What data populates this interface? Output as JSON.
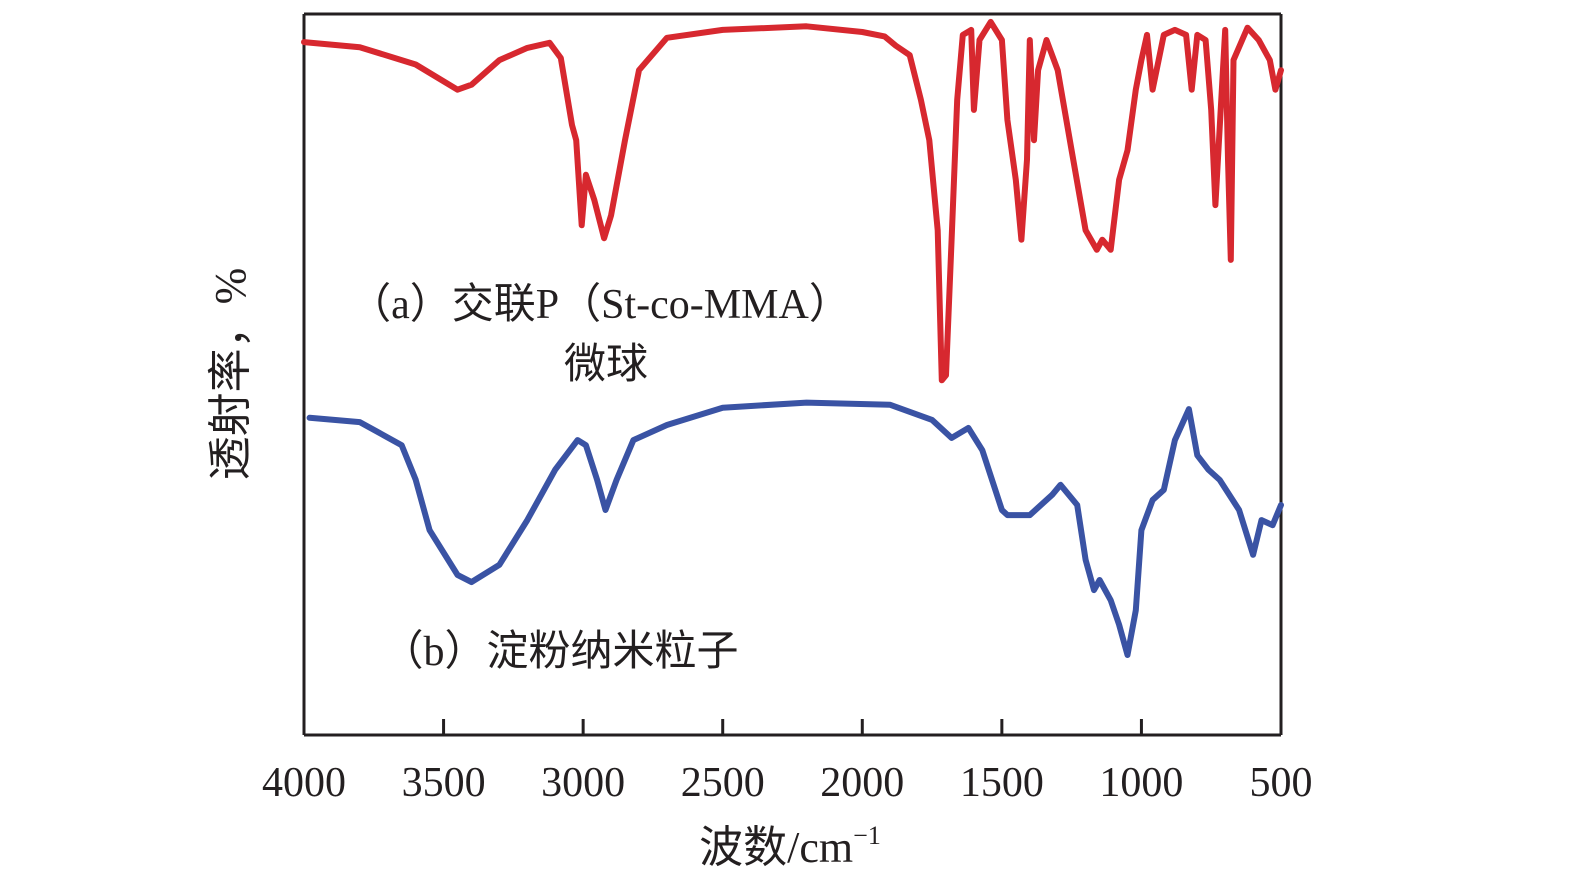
{
  "chart_data": {
    "type": "line",
    "title": "",
    "xlabel": "波数/cm",
    "xlabel_superscript": "−1",
    "ylabel": "透射率，%",
    "xlim": [
      4000,
      500
    ],
    "x_reversed": true,
    "ylim": [
      0,
      100
    ],
    "y_units_note": "relative transmittance (no y ticks shown)",
    "grid": false,
    "x_ticks": [
      4000,
      3500,
      3000,
      2500,
      2000,
      1500,
      1000,
      500
    ],
    "x_tick_labels": [
      "4000",
      "3500",
      "3000",
      "2500",
      "2000",
      "1500",
      "1000",
      "500"
    ],
    "annotations": [
      {
        "id": "a",
        "lines": [
          "（a）交联P（St-co-MMA）",
          "微球"
        ],
        "series": "a"
      },
      {
        "id": "b",
        "lines": [
          "（b）淀粉纳米粒子"
        ],
        "series": "b"
      }
    ],
    "series": [
      {
        "name": "(a) 交联P(St-co-MMA)微球",
        "color": "#d7282f",
        "x": [
          4000,
          3800,
          3600,
          3450,
          3400,
          3300,
          3200,
          3120,
          3080,
          3040,
          3025,
          3005,
          2990,
          2960,
          2925,
          2900,
          2850,
          2800,
          2700,
          2500,
          2200,
          2000,
          1920,
          1880,
          1830,
          1790,
          1760,
          1730,
          1715,
          1700,
          1680,
          1660,
          1640,
          1610,
          1600,
          1580,
          1540,
          1500,
          1480,
          1450,
          1430,
          1410,
          1400,
          1385,
          1370,
          1340,
          1300,
          1250,
          1200,
          1160,
          1140,
          1110,
          1080,
          1050,
          1020,
          1000,
          980,
          960,
          920,
          880,
          840,
          820,
          800,
          770,
          750,
          735,
          720,
          700,
          690,
          680,
          670,
          620,
          580,
          540,
          520,
          500
        ],
        "y": [
          96.1,
          95.4,
          93.0,
          89.5,
          90.2,
          93.6,
          95.3,
          96.0,
          93.9,
          84.6,
          82.5,
          70.7,
          77.7,
          74.2,
          68.9,
          72.1,
          82.5,
          92.2,
          96.7,
          97.8,
          98.3,
          97.5,
          96.9,
          95.6,
          94.3,
          88.1,
          82.5,
          70.0,
          49.2,
          49.9,
          68.7,
          88.1,
          97.1,
          97.8,
          86.7,
          96.4,
          98.9,
          96.4,
          85.3,
          77.0,
          68.7,
          79.8,
          96.4,
          82.5,
          92.2,
          96.4,
          92.2,
          81.1,
          70.0,
          67.3,
          68.7,
          67.3,
          77.0,
          81.1,
          89.5,
          93.6,
          97.1,
          89.5,
          97.1,
          97.8,
          97.1,
          89.5,
          97.1,
          96.4,
          86.7,
          73.5,
          84.0,
          97.8,
          79.8,
          65.9,
          93.6,
          98.1,
          96.4,
          93.6,
          89.5,
          92.2
        ]
      },
      {
        "name": "(b) 淀粉纳米粒子",
        "color": "#3a53a4",
        "x": [
          3980,
          3800,
          3650,
          3600,
          3550,
          3450,
          3400,
          3300,
          3200,
          3100,
          3020,
          2990,
          2950,
          2920,
          2880,
          2820,
          2700,
          2500,
          2200,
          1900,
          1750,
          1680,
          1620,
          1570,
          1500,
          1480,
          1400,
          1320,
          1290,
          1230,
          1200,
          1170,
          1150,
          1110,
          1080,
          1050,
          1020,
          1000,
          960,
          920,
          880,
          830,
          800,
          760,
          720,
          650,
          600,
          570,
          530,
          500
        ],
        "y": [
          44.0,
          43.4,
          40.2,
          35.4,
          28.4,
          22.2,
          21.2,
          23.6,
          29.8,
          36.8,
          40.9,
          40.2,
          35.4,
          31.2,
          35.4,
          40.9,
          43.0,
          45.4,
          46.1,
          45.8,
          43.7,
          41.2,
          42.6,
          39.5,
          31.2,
          30.5,
          30.5,
          33.3,
          34.7,
          31.9,
          24.3,
          20.1,
          21.5,
          18.7,
          15.3,
          11.1,
          17.3,
          28.4,
          32.6,
          34.0,
          40.9,
          45.2,
          38.8,
          36.8,
          35.4,
          31.2,
          25.0,
          29.8,
          29.1,
          31.9
        ]
      }
    ]
  }
}
